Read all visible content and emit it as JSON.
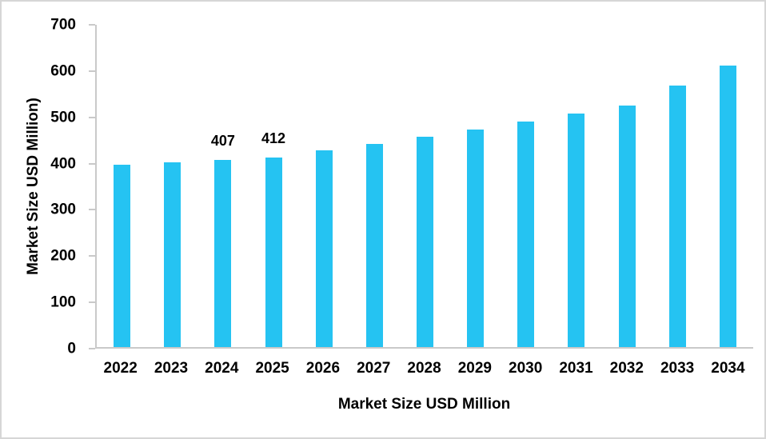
{
  "chart_data": {
    "type": "bar",
    "title": "",
    "categories": [
      "2022",
      "2023",
      "2024",
      "2025",
      "2026",
      "2027",
      "2028",
      "2029",
      "2030",
      "2031",
      "2032",
      "2033",
      "2034"
    ],
    "values": [
      396,
      402,
      407,
      412,
      428,
      442,
      457,
      473,
      490,
      507,
      525,
      568,
      611
    ],
    "data_labels": [
      null,
      null,
      "407",
      "412",
      null,
      null,
      null,
      null,
      null,
      null,
      null,
      null,
      null
    ],
    "xlabel": "Market Size USD Million",
    "ylabel": "Market Size USD Million)",
    "ylim": [
      0,
      700
    ],
    "yticks": [
      0,
      100,
      200,
      300,
      400,
      500,
      600,
      700
    ],
    "bar_color": "#25c3f2",
    "grid": false,
    "legend_position": "none"
  }
}
